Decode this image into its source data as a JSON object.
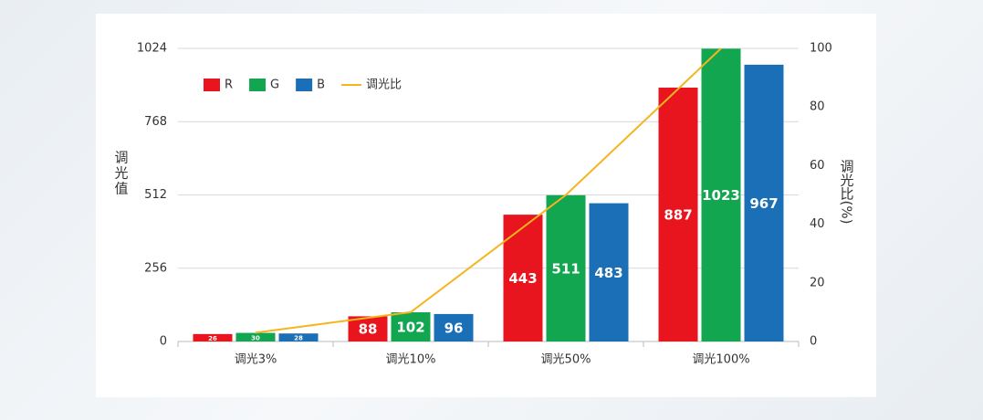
{
  "chart_data": {
    "type": "bar",
    "y_label": "调光值",
    "y2_label": "调光比(%)",
    "categories": [
      "调光3%",
      "调光10%",
      "调光50%",
      "调光100%"
    ],
    "series": [
      {
        "name": "R",
        "color": "#e8141e",
        "values": [
          26,
          88,
          443,
          887
        ]
      },
      {
        "name": "G",
        "color": "#13a651",
        "values": [
          30,
          102,
          511,
          1023
        ]
      },
      {
        "name": "B",
        "color": "#1b6fb6",
        "values": [
          28,
          96,
          483,
          967
        ]
      },
      {
        "name": "调光比",
        "type": "line",
        "axis": "y2",
        "color": "#f4b51f",
        "values": [
          3,
          10,
          50,
          100
        ]
      }
    ],
    "ylim": [
      0,
      1024
    ],
    "yticks": [
      0,
      256,
      512,
      768,
      1024
    ],
    "y2lim": [
      0,
      100
    ],
    "y2ticks": [
      0,
      20,
      40,
      60,
      80,
      100
    ],
    "grid": true,
    "legend": "top-left"
  }
}
